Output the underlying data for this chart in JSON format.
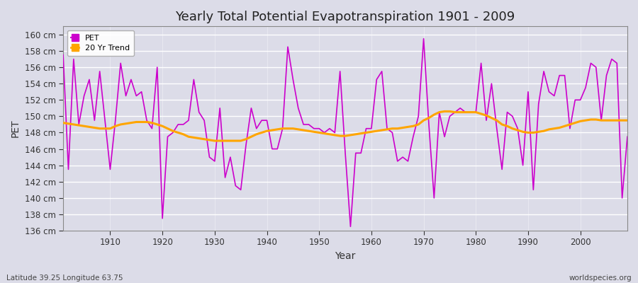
{
  "title": "Yearly Total Potential Evapotranspiration 1901 - 2009",
  "xlabel": "Year",
  "ylabel": "PET",
  "subtitle_left": "Latitude 39.25 Longitude 63.75",
  "subtitle_right": "worldspecies.org",
  "pet_color": "#cc00cc",
  "trend_color": "#ffa500",
  "background_color": "#dcdce8",
  "plot_bg_color": "#dcdce8",
  "grid_color": "#ffffff",
  "ylim": [
    136,
    161
  ],
  "yticks": [
    136,
    138,
    140,
    142,
    144,
    146,
    148,
    150,
    152,
    154,
    156,
    158,
    160
  ],
  "years": [
    1901,
    1902,
    1903,
    1904,
    1905,
    1906,
    1907,
    1908,
    1909,
    1910,
    1911,
    1912,
    1913,
    1914,
    1915,
    1916,
    1917,
    1918,
    1919,
    1920,
    1921,
    1922,
    1923,
    1924,
    1925,
    1926,
    1927,
    1928,
    1929,
    1930,
    1931,
    1932,
    1933,
    1934,
    1935,
    1936,
    1937,
    1938,
    1939,
    1940,
    1941,
    1942,
    1943,
    1944,
    1945,
    1946,
    1947,
    1948,
    1949,
    1950,
    1951,
    1952,
    1953,
    1954,
    1955,
    1956,
    1957,
    1958,
    1959,
    1960,
    1961,
    1962,
    1963,
    1964,
    1965,
    1966,
    1967,
    1968,
    1969,
    1970,
    1971,
    1972,
    1973,
    1974,
    1975,
    1976,
    1977,
    1978,
    1979,
    1980,
    1981,
    1982,
    1983,
    1984,
    1985,
    1986,
    1987,
    1988,
    1989,
    1990,
    1991,
    1992,
    1993,
    1994,
    1995,
    1996,
    1997,
    1998,
    1999,
    2000,
    2001,
    2002,
    2003,
    2004,
    2005,
    2006,
    2007,
    2008,
    2009
  ],
  "pet_values": [
    157.5,
    143.5,
    157.0,
    149.0,
    152.5,
    154.5,
    149.5,
    155.5,
    149.5,
    143.5,
    149.5,
    156.5,
    152.5,
    154.5,
    152.5,
    153.0,
    149.5,
    148.5,
    156.0,
    137.5,
    147.5,
    148.0,
    149.0,
    149.0,
    149.5,
    154.5,
    150.5,
    149.5,
    145.0,
    144.5,
    151.0,
    142.5,
    145.0,
    141.5,
    141.0,
    146.5,
    151.0,
    148.5,
    149.5,
    149.5,
    146.0,
    146.0,
    148.5,
    158.5,
    154.5,
    151.0,
    149.0,
    149.0,
    148.5,
    148.5,
    148.0,
    148.5,
    148.0,
    155.5,
    145.5,
    136.5,
    145.5,
    145.5,
    148.5,
    148.5,
    154.5,
    155.5,
    148.5,
    148.0,
    144.5,
    145.0,
    144.5,
    147.5,
    150.0,
    159.5,
    149.0,
    140.0,
    150.5,
    147.5,
    150.0,
    150.5,
    151.0,
    150.5,
    150.5,
    150.5,
    156.5,
    149.5,
    154.0,
    148.5,
    143.5,
    150.5,
    150.0,
    148.5,
    144.0,
    153.0,
    141.0,
    151.5,
    155.5,
    153.0,
    152.5,
    155.0,
    155.0,
    148.5,
    152.0,
    152.0,
    153.5,
    156.5,
    156.0,
    149.5,
    155.0,
    157.0,
    156.5,
    140.0,
    147.5
  ],
  "trend_values": [
    149.2,
    149.1,
    149.0,
    148.9,
    148.8,
    148.7,
    148.6,
    148.5,
    148.5,
    148.5,
    148.8,
    149.0,
    149.1,
    149.2,
    149.3,
    149.3,
    149.3,
    149.2,
    149.0,
    148.8,
    148.5,
    148.2,
    148.0,
    147.8,
    147.5,
    147.4,
    147.3,
    147.2,
    147.1,
    147.0,
    147.0,
    147.0,
    147.0,
    147.0,
    147.0,
    147.2,
    147.5,
    147.8,
    148.0,
    148.2,
    148.3,
    148.4,
    148.5,
    148.5,
    148.5,
    148.4,
    148.3,
    148.2,
    148.1,
    148.0,
    147.9,
    147.8,
    147.7,
    147.6,
    147.6,
    147.7,
    147.8,
    147.9,
    148.0,
    148.1,
    148.2,
    148.3,
    148.4,
    148.5,
    148.5,
    148.6,
    148.7,
    148.8,
    149.0,
    149.5,
    149.8,
    150.2,
    150.5,
    150.6,
    150.6,
    150.5,
    150.5,
    150.5,
    150.5,
    150.5,
    150.3,
    150.1,
    149.8,
    149.5,
    149.0,
    148.8,
    148.5,
    148.3,
    148.1,
    148.0,
    148.0,
    148.1,
    148.2,
    148.4,
    148.5,
    148.6,
    148.8,
    149.0,
    149.2,
    149.4,
    149.5,
    149.6,
    149.6,
    149.5,
    149.5,
    149.5,
    149.5,
    149.5,
    149.5
  ]
}
